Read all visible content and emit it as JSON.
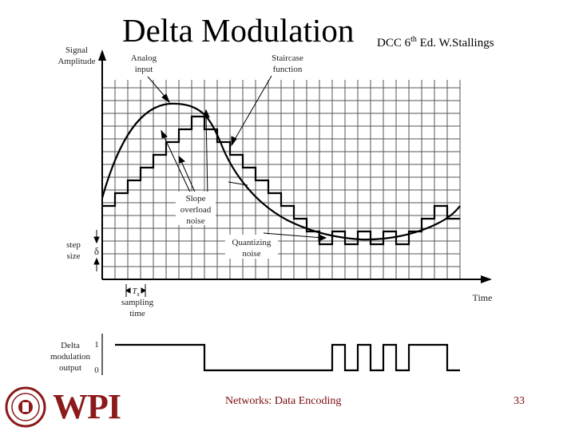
{
  "title": {
    "main": "Delta Modulation",
    "sub_prefix": "DCC 6",
    "sub_sup": "th",
    "sub_suffix": " Ed. W.Stallings"
  },
  "diagram": {
    "y_axis_label_1": "Signal",
    "y_axis_label_2": "Amplitude",
    "x_axis_label": "Time",
    "analog_input_1": "Analog",
    "analog_input_2": "input",
    "staircase_1": "Staircase",
    "staircase_2": "function",
    "slope_1": "Slope",
    "slope_2": "overload",
    "slope_3": "noise",
    "quant_1": "Quantizing",
    "quant_2": "noise",
    "step_1": "step",
    "step_2": "size",
    "delta": "δ",
    "ts": "T",
    "ts_sub": "s",
    "sampling_1": "sampling",
    "sampling_2": "time",
    "dm_1": "Delta",
    "dm_2": "modulation",
    "dm_3": "output",
    "one": "1",
    "zero": "0"
  },
  "footer": {
    "center": "Networks: Data Encoding",
    "page": "33",
    "logo_text": "WPI"
  },
  "colors": {
    "footer_text": "#7a0a0a",
    "logo": "#8b1a1a"
  }
}
